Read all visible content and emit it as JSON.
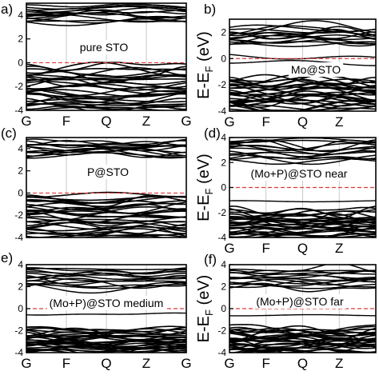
{
  "figure": {
    "ylabel_main": "E-E",
    "ylabel_sub": "F",
    "ylabel_unit": " (eV)",
    "kpoints": [
      "G",
      "F",
      "Q",
      "Z",
      "G"
    ]
  },
  "chart_data": [
    {
      "type": "line",
      "panel_label": "a)",
      "inset_label": "pure STO",
      "x_ticks": [
        "G",
        "F",
        "Q",
        "Z",
        "G"
      ],
      "y_ticks": [
        "4",
        "2",
        "0",
        "-2",
        "-4"
      ],
      "ylim": [
        -4,
        5
      ],
      "fermi_level": 0,
      "gap_states": [],
      "conduction_band_range": [
        3.4,
        4.8
      ],
      "valence_band_range": [
        -4.0,
        -0.2
      ],
      "show_ylabel": false,
      "show_x_ticks": true
    },
    {
      "type": "line",
      "panel_label": "b)",
      "inset_label": "Mo@STO",
      "x_ticks": [
        "G",
        "F",
        "Q",
        "Z"
      ],
      "y_ticks": [
        "2",
        "0",
        "-2",
        "-4"
      ],
      "ylim": [
        -4,
        3
      ],
      "fermi_level": 0,
      "gap_states": [
        0.1,
        -0.3
      ],
      "conduction_band_range": [
        1.1,
        2.4
      ],
      "valence_band_range": [
        -4.0,
        -1.4
      ],
      "show_ylabel": true,
      "show_x_ticks": true
    },
    {
      "type": "line",
      "panel_label": "(c)",
      "inset_label": "P@STO",
      "x_ticks": [],
      "y_ticks": [
        "4",
        "2",
        "0",
        "-2",
        "-4"
      ],
      "ylim": [
        -4,
        5
      ],
      "fermi_level": 0,
      "gap_states": [],
      "conduction_band_range": [
        3.4,
        4.6
      ],
      "valence_band_range": [
        -4.0,
        0.0
      ],
      "show_ylabel": false,
      "show_x_ticks": false
    },
    {
      "type": "line",
      "panel_label": "(d)",
      "inset_label": "(Mo+P)@STO near",
      "x_ticks": [
        "G",
        "F",
        "Q",
        "Z"
      ],
      "y_ticks": [
        "4",
        "2",
        "0",
        "-2",
        "-4"
      ],
      "ylim": [
        -4,
        4
      ],
      "fermi_level": 0,
      "gap_states": [
        -1.1
      ],
      "conduction_band_range": [
        2.1,
        3.8
      ],
      "valence_band_range": [
        -4.0,
        -1.8
      ],
      "show_ylabel": true,
      "show_x_ticks": true
    },
    {
      "type": "line",
      "panel_label": "e)",
      "inset_label": "(Mo+P)@STO medium",
      "x_ticks": [
        "G",
        "F",
        "Q",
        "Z",
        "G"
      ],
      "y_ticks": [
        "4",
        "2",
        "0",
        "-2",
        "-4"
      ],
      "ylim": [
        -4,
        4
      ],
      "fermi_level": 0,
      "gap_states": [
        -0.5
      ],
      "conduction_band_range": [
        1.9,
        3.6
      ],
      "valence_band_range": [
        -4.0,
        -1.8
      ],
      "show_ylabel": false,
      "show_x_ticks": true
    },
    {
      "type": "line",
      "panel_label": "(f)",
      "inset_label": "(Mo+P)@STO far",
      "x_ticks": [
        "G",
        "F",
        "Q",
        "Z"
      ],
      "y_ticks": [
        "4",
        "2",
        "0",
        "-2",
        "-4"
      ],
      "ylim": [
        -4,
        4
      ],
      "fermi_level": 0,
      "gap_states": [
        -0.6
      ],
      "conduction_band_range": [
        1.9,
        3.6
      ],
      "valence_band_range": [
        -4.0,
        -1.8
      ],
      "show_ylabel": true,
      "show_x_ticks": true
    }
  ]
}
